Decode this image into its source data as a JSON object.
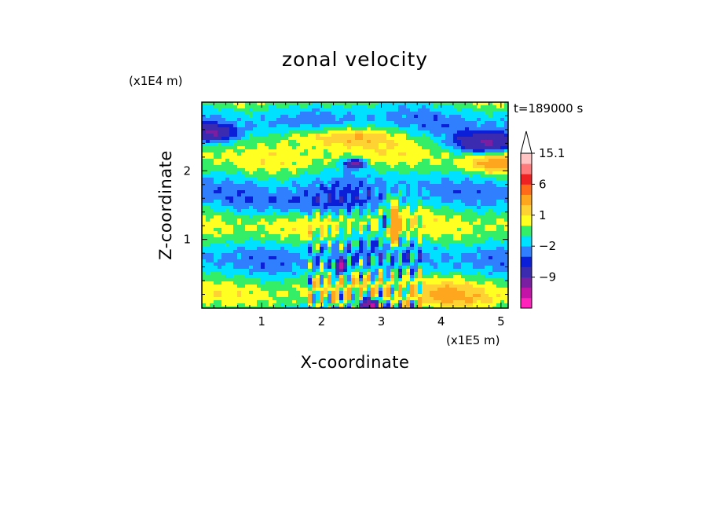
{
  "chart_data": {
    "type": "heatmap",
    "title": "zonal velocity",
    "xlabel": "X-coordinate",
    "ylabel": "Z-coordinate",
    "x_unit": "(x1E5 m)",
    "y_unit": "(x1E4 m)",
    "time_label": "t=189000 s",
    "xlim": [
      0,
      5.12
    ],
    "ylim": [
      0,
      3.0
    ],
    "x_ticks": [
      1,
      2,
      3,
      4,
      5
    ],
    "y_ticks": [
      1,
      2
    ],
    "colorbar": {
      "levels": [
        -15,
        -12,
        -9,
        -6,
        -3,
        -2,
        -1,
        0,
        1,
        2,
        3,
        6,
        9,
        12,
        15.1
      ],
      "colors": [
        "#ff22bb",
        "#c414a8",
        "#7b1fa2",
        "#3a2bb0",
        "#0b1fd8",
        "#2f7fff",
        "#00e1ff",
        "#33ee66",
        "#ffff22",
        "#ffd233",
        "#ffa61f",
        "#ff6a1a",
        "#ee2222",
        "#ff7b7b",
        "#ffc4c4"
      ],
      "tick_labels": [
        "15.1",
        "6",
        "1",
        "−2",
        "−9"
      ],
      "tick_values": [
        15.1,
        6,
        1,
        -2,
        -9
      ],
      "extend": "max"
    }
  }
}
